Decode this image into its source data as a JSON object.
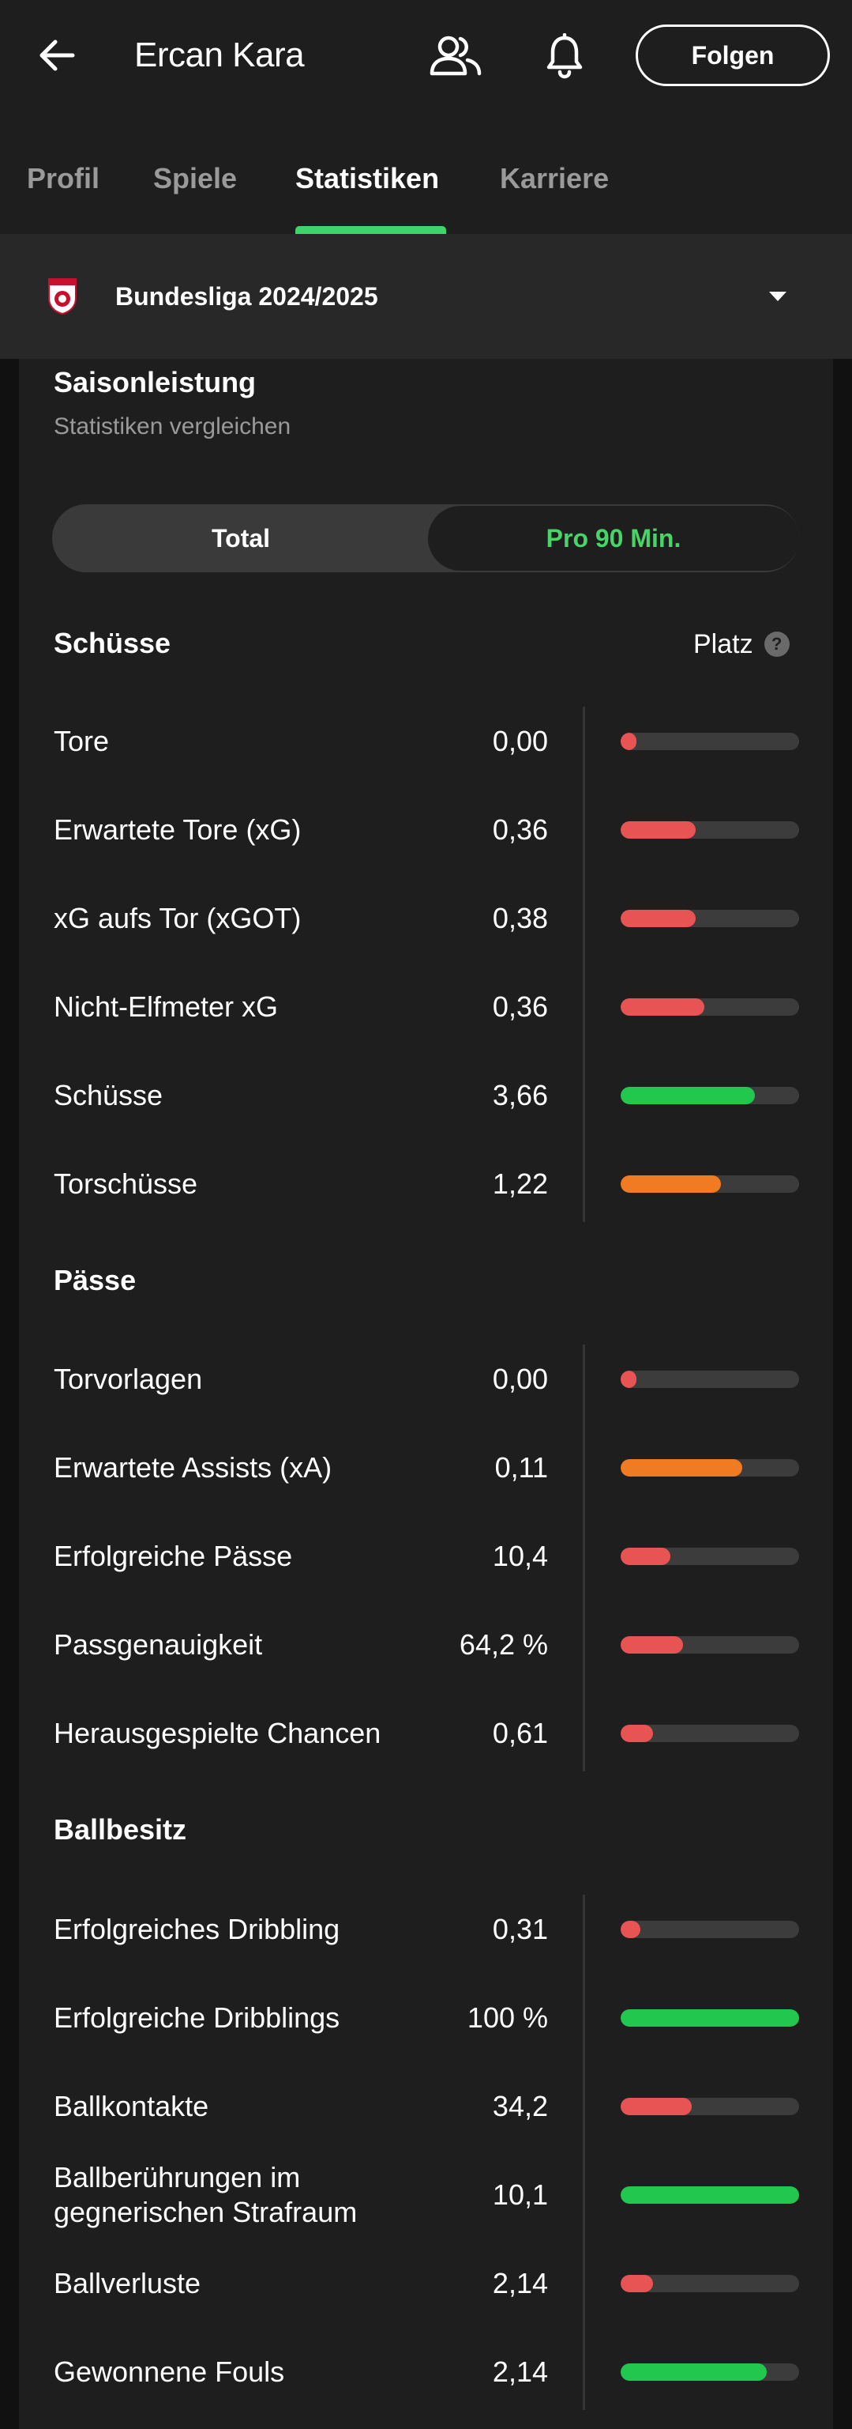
{
  "header": {
    "title": "Ercan Kara",
    "follow_label": "Folgen",
    "icons": [
      "back-arrow-icon",
      "people-icon",
      "bell-icon"
    ]
  },
  "tabs": [
    {
      "label": "Profil"
    },
    {
      "label": "Spiele"
    },
    {
      "label": "Statistiken"
    },
    {
      "label": "Karriere"
    }
  ],
  "active_tab": "Statistiken",
  "competition": {
    "name": "Bundesliga 2024/2025",
    "icon": "competition-logo-icon"
  },
  "card": {
    "title": "Saisonleistung",
    "subtitle": "Statistiken vergleichen",
    "toggle": {
      "left_label": "Total",
      "right_label": "Pro 90 Min.",
      "selected": "Pro 90 Min."
    },
    "rank_header": "Platz",
    "sections": [
      {
        "title": "Schüsse",
        "rows": [
          {
            "label": "Tore",
            "value": "0,00",
            "level": 0.09,
            "color": "#e85454"
          },
          {
            "label": "Erwartete Tore (xG)",
            "value": "0,36",
            "level": 0.42,
            "color": "#e85454"
          },
          {
            "label": "xG aufs Tor (xGOT)",
            "value": "0,38",
            "level": 0.42,
            "color": "#e85454"
          },
          {
            "label": "Nicht-Elfmeter xG",
            "value": "0,36",
            "level": 0.47,
            "color": "#e85454"
          },
          {
            "label": "Schüsse",
            "value": "3,66",
            "level": 0.75,
            "color": "#22c84e"
          },
          {
            "label": "Torschüsse",
            "value": "1,22",
            "level": 0.56,
            "color": "#f07b22"
          }
        ]
      },
      {
        "title": "Pässe",
        "rows": [
          {
            "label": "Torvorlagen",
            "value": "0,00",
            "level": 0.09,
            "color": "#e85454"
          },
          {
            "label": "Erwartete Assists (xA)",
            "value": "0,11",
            "level": 0.68,
            "color": "#f07b22"
          },
          {
            "label": "Erfolgreiche Pässe",
            "value": "10,4",
            "level": 0.28,
            "color": "#e85454"
          },
          {
            "label": "Passgenauigkeit",
            "value": "64,2 %",
            "level": 0.35,
            "color": "#e85454"
          },
          {
            "label": "Herausgespielte Chancen",
            "value": "0,61",
            "level": 0.18,
            "color": "#e85454"
          }
        ]
      },
      {
        "title": "Ballbesitz",
        "rows": [
          {
            "label": "Erfolgreiches Dribbling",
            "value": "0,31",
            "level": 0.11,
            "color": "#e85454"
          },
          {
            "label": "Erfolgreiche Dribblings",
            "value": "100 %",
            "level": 1.0,
            "color": "#22c84e"
          },
          {
            "label": "Ballkontakte",
            "value": "34,2",
            "level": 0.4,
            "color": "#e85454"
          },
          {
            "label": "Ballberührungen im gegnerischen Strafraum",
            "value": "10,1",
            "level": 1.0,
            "color": "#22c84e"
          },
          {
            "label": "Ballverluste",
            "value": "2,14",
            "level": 0.18,
            "color": "#e85454"
          },
          {
            "label": "Gewonnene Fouls",
            "value": "2,14",
            "level": 0.82,
            "color": "#22c84e"
          }
        ]
      }
    ]
  }
}
